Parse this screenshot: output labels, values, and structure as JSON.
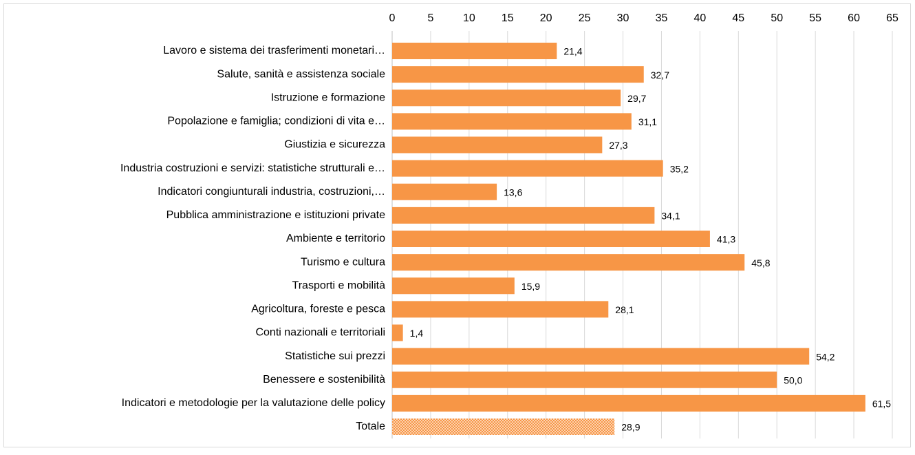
{
  "chart_data": {
    "type": "bar",
    "orientation": "horizontal",
    "categories": [
      "Lavoro e sistema dei trasferimenti monetari…",
      "Salute, sanità e assistenza sociale",
      "Istruzione e formazione",
      "Popolazione e famiglia; condizioni di vita e…",
      "Giustizia e sicurezza",
      "Industria costruzioni e servizi: statistiche strutturali e…",
      "Indicatori congiunturali industria, costruzioni,…",
      "Pubblica amministrazione e istituzioni private",
      "Ambiente e territorio",
      "Turismo e cultura",
      "Trasporti e mobilità",
      "Agricoltura, foreste e pesca",
      "Conti nazionali e territoriali",
      "Statistiche sui prezzi",
      "Benessere e sostenibilità",
      "Indicatori e metodologie per la valutazione delle policy",
      "Totale"
    ],
    "values": [
      21.4,
      32.7,
      29.7,
      31.1,
      27.3,
      35.2,
      13.6,
      34.1,
      41.3,
      45.8,
      15.9,
      28.1,
      1.4,
      54.2,
      50.0,
      61.5,
      28.9
    ],
    "value_labels": [
      "21,4",
      "32,7",
      "29,7",
      "31,1",
      "27,3",
      "35,2",
      "13,6",
      "34,1",
      "41,3",
      "45,8",
      "15,9",
      "28,1",
      "1,4",
      "54,2",
      "50,0",
      "61,5",
      "28,9"
    ],
    "color": "#f79646",
    "last_bar_pattern": "dots",
    "xlim": [
      0,
      65
    ],
    "xticks": [
      0,
      5,
      10,
      15,
      20,
      25,
      30,
      35,
      40,
      45,
      50,
      55,
      60,
      65
    ],
    "grid": true,
    "x_axis_position": "top"
  }
}
